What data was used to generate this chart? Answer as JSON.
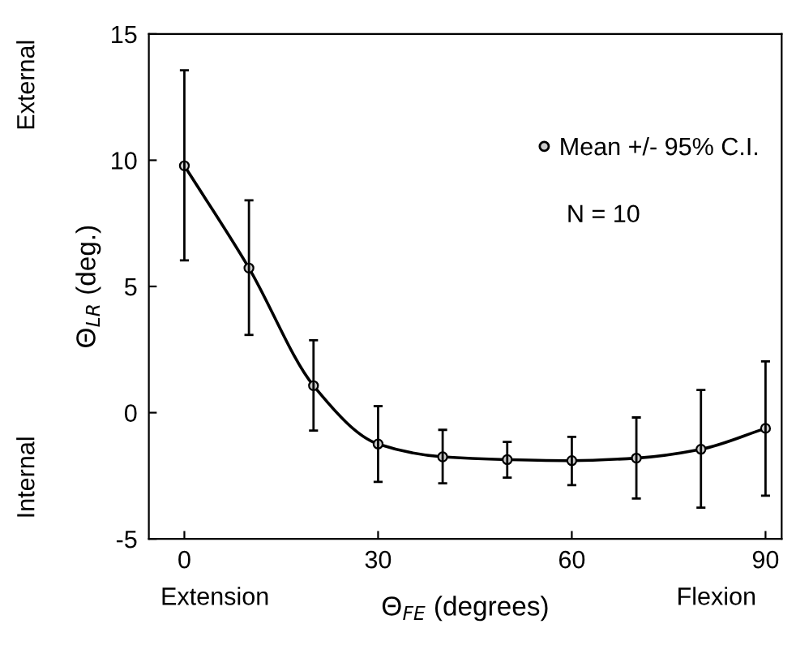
{
  "chart_data": {
    "type": "line",
    "x": [
      0,
      10,
      20,
      30,
      40,
      50,
      60,
      70,
      80,
      90
    ],
    "series": [
      {
        "name": "Mean +/- 95% C.I.",
        "color": "#000000",
        "values": [
          9.78,
          5.73,
          1.07,
          -1.24,
          -1.75,
          -1.86,
          -1.9,
          -1.8,
          -1.45,
          -0.62
        ],
        "errors": [
          [
            6.03,
            13.56
          ],
          [
            3.08,
            8.41
          ],
          [
            -0.71,
            2.87
          ],
          [
            -2.74,
            0.26
          ],
          [
            -2.8,
            -0.68
          ],
          [
            -2.57,
            -1.16
          ],
          [
            -2.87,
            -0.96
          ],
          [
            -3.4,
            -0.19
          ],
          [
            -3.76,
            0.9
          ],
          [
            -3.29,
            2.03
          ]
        ]
      }
    ],
    "xlabel": "Θ$_{FE}$ (degrees)",
    "ylabel": "Θ$_{LR}$ (deg.)",
    "xlim": [
      -5.5,
      92.5
    ],
    "ylim": [
      -5,
      15
    ],
    "xticks": [
      0,
      30,
      60,
      90
    ],
    "yticks": [
      -5,
      0,
      5,
      10,
      15
    ],
    "marker": "circle",
    "line_style": "solid",
    "grid": false,
    "legend": "top right",
    "annotations": [
      "N = 10",
      "External",
      "Internal",
      "Extension",
      "Flexion"
    ]
  }
}
